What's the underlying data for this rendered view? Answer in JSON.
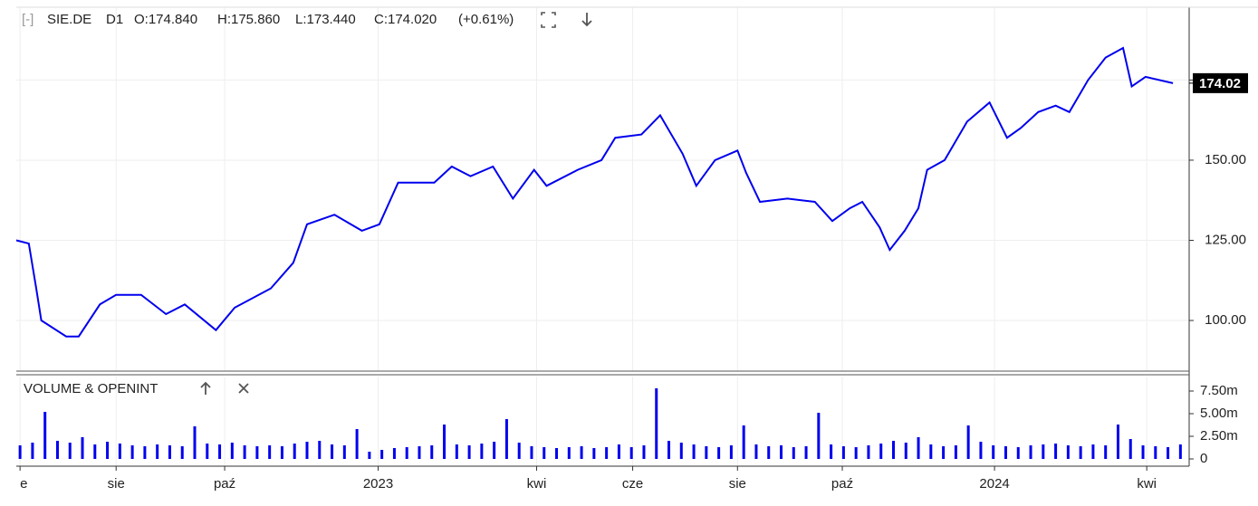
{
  "chart_data": [
    {
      "type": "line",
      "header": {
        "collapse": "[-]",
        "symbol": "SIE.DE",
        "timeframe": "D1",
        "open": "O:174.840",
        "high": "H:175.860",
        "low": "L:173.440",
        "close": "C:174.020",
        "change": "(+0.61%)"
      },
      "last_price": 174.02,
      "series": [
        {
          "name": "SIE.DE",
          "color": "#0000ee",
          "x": [
            0,
            1,
            1.6,
            2,
            4,
            5,
            6.7,
            8,
            10,
            12,
            13.5,
            16,
            17.5,
            20.4,
            22.2,
            23.3,
            25.5,
            27.7,
            29.1,
            30.6,
            33.5,
            34.9,
            36.4,
            38.2,
            39.8,
            41.5,
            42.5,
            45,
            46.9,
            48,
            50.1,
            51.6,
            53.4,
            54.5,
            56,
            57.8,
            58.5,
            59.6,
            61.8,
            64,
            65.4,
            66.8,
            67.8,
            69.2,
            70,
            71.2,
            72.3,
            73,
            74.4,
            76.2,
            78,
            79.4,
            80.5,
            81.9,
            83.3,
            84.4,
            85.9,
            87.3,
            88.7,
            89.4,
            90.5,
            92.7
          ],
          "values": [
            125,
            124,
            110,
            100,
            95,
            95,
            105,
            108,
            108,
            102,
            105,
            97,
            104,
            110,
            118,
            130,
            133,
            128,
            130,
            143,
            143,
            148,
            145,
            148,
            138,
            147,
            142,
            147,
            150,
            157,
            158,
            164,
            152,
            142,
            150,
            153,
            146,
            137,
            138,
            137,
            131,
            135,
            137,
            129,
            122,
            128,
            135,
            147,
            150,
            162,
            168,
            157,
            160,
            165,
            167,
            165,
            175,
            182,
            185,
            173,
            176,
            174
          ]
        }
      ],
      "xlim": [
        0,
        94
      ],
      "xticks": [
        {
          "value": 0.3,
          "label": "e"
        },
        {
          "value": 8,
          "label": "sie"
        },
        {
          "value": 16.7,
          "label": "paź"
        },
        {
          "value": 29,
          "label": "2023"
        },
        {
          "value": 41.7,
          "label": "kwi"
        },
        {
          "value": 49.4,
          "label": "cze"
        },
        {
          "value": 57.8,
          "label": "sie"
        },
        {
          "value": 66.2,
          "label": "paź"
        },
        {
          "value": 78.4,
          "label": "2024"
        },
        {
          "value": 90.6,
          "label": "kwi"
        }
      ],
      "ylim": [
        84.2,
        197.7
      ],
      "yticks": [
        {
          "value": 100,
          "label": "100.00"
        },
        {
          "value": 125,
          "label": "125.00"
        },
        {
          "value": 150,
          "label": "150.00"
        },
        {
          "value": 175,
          "label": "175.00"
        }
      ],
      "grid": true
    },
    {
      "type": "bar",
      "title": "VOLUME & OPENINT",
      "color": "#0000ee",
      "values": [
        1.5,
        1.8,
        5.2,
        2.0,
        1.8,
        2.4,
        1.6,
        1.9,
        1.7,
        1.5,
        1.4,
        1.6,
        1.5,
        1.4,
        3.6,
        1.7,
        1.6,
        1.8,
        1.5,
        1.4,
        1.5,
        1.4,
        1.7,
        1.9,
        2.0,
        1.6,
        1.5,
        3.3,
        0.8,
        1.0,
        1.2,
        1.3,
        1.4,
        1.5,
        3.8,
        1.6,
        1.5,
        1.7,
        1.9,
        4.4,
        1.8,
        1.4,
        1.3,
        1.2,
        1.3,
        1.4,
        1.2,
        1.3,
        1.6,
        1.3,
        1.5,
        7.8,
        2.0,
        1.8,
        1.6,
        1.4,
        1.3,
        1.5,
        3.7,
        1.6,
        1.4,
        1.5,
        1.3,
        1.4,
        5.1,
        1.6,
        1.4,
        1.3,
        1.5,
        1.7,
        2.0,
        1.8,
        2.4,
        1.6,
        1.4,
        1.5,
        3.7,
        1.9,
        1.5,
        1.4,
        1.3,
        1.5,
        1.6,
        1.7,
        1.5,
        1.4,
        1.6,
        1.5,
        3.8,
        2.2,
        1.5,
        1.4,
        1.3,
        1.6
      ],
      "ylim": [
        0,
        8.7
      ],
      "yticks": [
        0,
        {
          "value": 2.5,
          "label": "2.50m"
        },
        {
          "value": 5,
          "label": "5.00m"
        },
        {
          "value": 7.5,
          "label": "7.50m"
        }
      ]
    }
  ]
}
